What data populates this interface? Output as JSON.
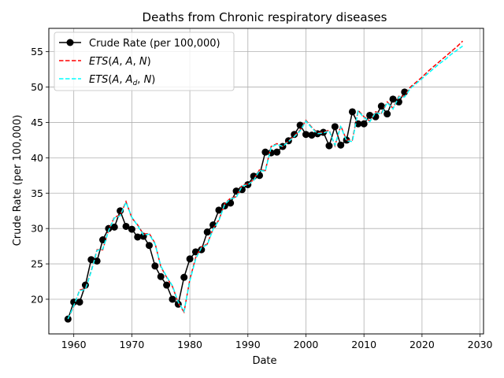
{
  "chart_data": {
    "type": "line",
    "title": "Deaths from Chronic respiratory diseases",
    "xlabel": "Date",
    "ylabel": "Crude Rate (per 100,000)",
    "xlim": [
      1955.7,
      2030.6
    ],
    "ylim": [
      15.1,
      58.3
    ],
    "grid": true,
    "legend_position": "top-left",
    "x_ticks": [
      1960,
      1970,
      1980,
      1990,
      2000,
      2010,
      2020,
      2030
    ],
    "y_ticks": [
      20,
      25,
      30,
      35,
      40,
      45,
      50,
      55
    ],
    "x_tick_labels": [
      "1960",
      "1970",
      "1980",
      "1990",
      "2000",
      "2010",
      "2020",
      "2030"
    ],
    "y_tick_labels": [
      "20",
      "25",
      "30",
      "35",
      "40",
      "45",
      "50",
      "55"
    ],
    "legend": [
      {
        "label": "Crude Rate (per 100,000)",
        "color": "#000000",
        "style": "solid-marker"
      },
      {
        "label": "ETS(A, A, N)",
        "color": "#ff0000",
        "style": "dashed"
      },
      {
        "label": "ETS(A, A_d, N)",
        "color": "#00ffff",
        "style": "dashed"
      }
    ],
    "series": [
      {
        "name": "Crude Rate (per 100,000)",
        "color": "#000000",
        "x": [
          1959,
          1960,
          1961,
          1962,
          1963,
          1964,
          1965,
          1966,
          1967,
          1968,
          1969,
          1970,
          1971,
          1972,
          1973,
          1974,
          1975,
          1976,
          1977,
          1978,
          1979,
          1980,
          1981,
          1982,
          1983,
          1984,
          1985,
          1986,
          1987,
          1988,
          1989,
          1990,
          1991,
          1992,
          1993,
          1994,
          1995,
          1996,
          1997,
          1998,
          1999,
          2000,
          2001,
          2002,
          2003,
          2004,
          2005,
          2006,
          2007,
          2008,
          2009,
          2010,
          2011,
          2012,
          2013,
          2014,
          2015,
          2016,
          2017
        ],
        "y": [
          17.2,
          19.6,
          19.6,
          22.0,
          25.6,
          25.4,
          28.4,
          30.0,
          30.2,
          32.5,
          30.3,
          29.9,
          28.8,
          28.9,
          27.6,
          24.7,
          23.2,
          22.0,
          20.0,
          19.3,
          23.1,
          25.7,
          26.7,
          27.0,
          29.5,
          30.5,
          32.6,
          33.2,
          33.6,
          35.3,
          35.5,
          36.2,
          37.4,
          37.5,
          40.8,
          40.7,
          40.8,
          41.6,
          42.4,
          43.3,
          44.6,
          43.3,
          43.2,
          43.4,
          43.6,
          41.7,
          44.4,
          41.8,
          42.5,
          46.5,
          44.8,
          44.8,
          46.0,
          45.8,
          47.3,
          46.2,
          48.3,
          47.9,
          49.3
        ]
      },
      {
        "name": "ETS(A, A, N)",
        "color": "#ff0000",
        "x": [
          1959,
          1960,
          1961,
          1962,
          1963,
          1964,
          1965,
          1966,
          1967,
          1968,
          1969,
          1970,
          1971,
          1972,
          1973,
          1974,
          1975,
          1976,
          1977,
          1978,
          1979,
          1980,
          1981,
          1982,
          1983,
          1984,
          1985,
          1986,
          1987,
          1988,
          1989,
          1990,
          1991,
          1992,
          1993,
          1994,
          1995,
          1996,
          1997,
          1998,
          1999,
          2000,
          2001,
          2002,
          2003,
          2004,
          2005,
          2006,
          2007,
          2008,
          2009,
          2010,
          2011,
          2012,
          2013,
          2014,
          2015,
          2016,
          2017,
          2018,
          2019,
          2020,
          2021,
          2022,
          2023,
          2024,
          2025,
          2026,
          2027
        ],
        "y": [
          17.2,
          19.0,
          21.3,
          21.5,
          24.0,
          27.0,
          27.0,
          29.8,
          31.6,
          31.9,
          33.8,
          31.5,
          30.5,
          29.2,
          29.3,
          27.9,
          24.6,
          23.1,
          21.8,
          19.5,
          18.2,
          22.8,
          25.9,
          27.4,
          27.8,
          30.0,
          31.2,
          33.5,
          34.3,
          34.5,
          36.1,
          36.3,
          36.9,
          38.3,
          38.2,
          41.6,
          42.0,
          41.6,
          42.4,
          43.1,
          43.9,
          45.3,
          44.3,
          43.5,
          43.6,
          43.9,
          41.7,
          44.5,
          42.5,
          42.5,
          46.7,
          45.8,
          45.2,
          46.5,
          46.3,
          47.9,
          47.0,
          48.7,
          48.7,
          50.0,
          50.7,
          51.4,
          52.2,
          52.9,
          53.6,
          54.3,
          55.0,
          55.7,
          56.5
        ]
      },
      {
        "name": "ETS(A, A_d, N)",
        "color": "#00ffff",
        "x": [
          1959,
          1960,
          1961,
          1962,
          1963,
          1964,
          1965,
          1966,
          1967,
          1968,
          1969,
          1970,
          1971,
          1972,
          1973,
          1974,
          1975,
          1976,
          1977,
          1978,
          1979,
          1980,
          1981,
          1982,
          1983,
          1984,
          1985,
          1986,
          1987,
          1988,
          1989,
          1990,
          1991,
          1992,
          1993,
          1994,
          1995,
          1996,
          1997,
          1998,
          1999,
          2000,
          2001,
          2002,
          2003,
          2004,
          2005,
          2006,
          2007,
          2008,
          2009,
          2010,
          2011,
          2012,
          2013,
          2014,
          2015,
          2016,
          2017,
          2018,
          2019,
          2020,
          2021,
          2022,
          2023,
          2024,
          2025,
          2026,
          2027
        ],
        "y": [
          17.2,
          19.1,
          21.2,
          21.4,
          23.9,
          26.9,
          27.1,
          29.7,
          31.5,
          31.8,
          33.7,
          31.6,
          30.4,
          29.1,
          29.2,
          27.8,
          24.7,
          23.2,
          21.9,
          19.6,
          18.3,
          22.6,
          25.7,
          27.3,
          27.7,
          29.9,
          31.1,
          33.4,
          34.2,
          34.4,
          36.0,
          36.2,
          36.8,
          38.2,
          38.1,
          41.5,
          41.9,
          41.6,
          42.3,
          43.0,
          43.8,
          45.2,
          44.2,
          43.4,
          43.5,
          43.8,
          41.8,
          44.4,
          42.4,
          42.3,
          46.6,
          45.7,
          45.1,
          46.4,
          46.2,
          47.8,
          46.9,
          48.6,
          48.6,
          49.8,
          50.5,
          51.2,
          51.9,
          52.6,
          53.3,
          53.9,
          54.6,
          55.2,
          55.8
        ]
      }
    ]
  }
}
